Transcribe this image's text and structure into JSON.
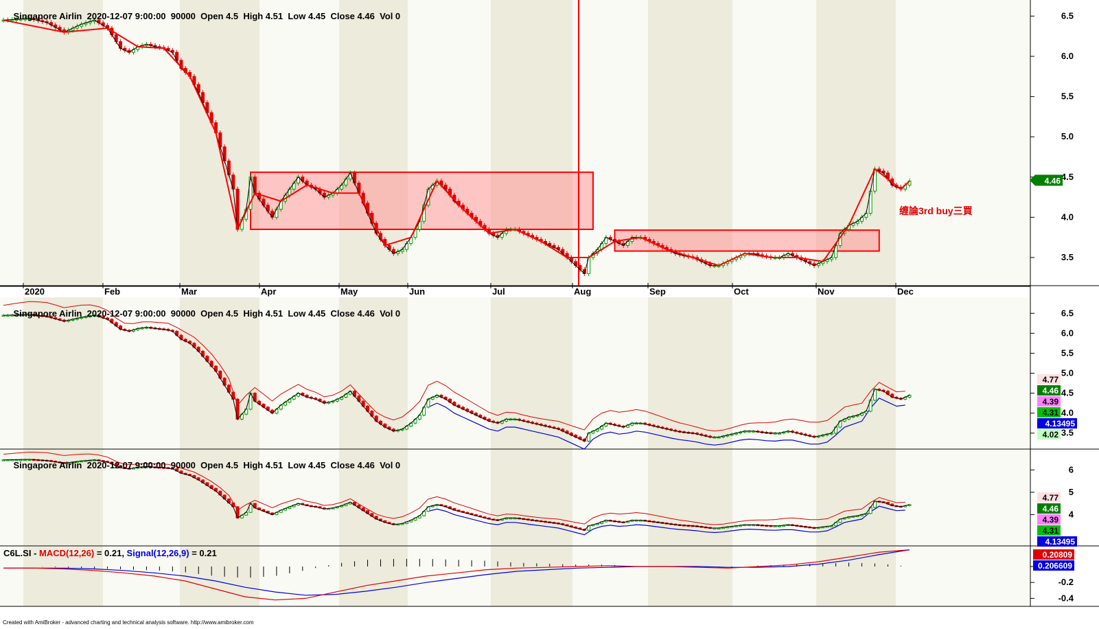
{
  "panes": [
    {
      "header": {
        "symbol": "Singapore Airlin",
        "datetime": "2020-12-07 9:00:00",
        "interval": "90000",
        "open": "Open 4.5",
        "high": "High 4.51",
        "low": "Low 4.45",
        "close": "Close 4.46",
        "vol": "Vol 0"
      },
      "y_ticks": [
        "6.5",
        "6.0",
        "5.5",
        "5.0",
        "4.5",
        "4.0",
        "3.5"
      ],
      "price_box": "4.46",
      "annotation": "缠論3rd buy三買"
    },
    {
      "header": {
        "symbol": "Singapore Airlin",
        "datetime": "2020-12-07 9:00:00",
        "interval": "90000",
        "open": "Open 4.5",
        "high": "High 4.51",
        "low": "Low 4.45",
        "close": "Close 4.46",
        "vol": "Vol 0"
      },
      "y_ticks": [
        "6.5",
        "6.0",
        "5.5",
        "5.0",
        "4.5",
        "4.0",
        "3.5"
      ],
      "value_boxes": [
        "4.77",
        "4.46",
        "4.39",
        "4.31",
        "4.13495",
        "4.02"
      ]
    },
    {
      "header": {
        "symbol": "Singapore Airlin",
        "datetime": "2020-12-07 9:00:00",
        "interval": "90000",
        "open": "Open 4.5",
        "high": "High 4.51",
        "low": "Low 4.45",
        "close": "Close 4.46",
        "vol": "Vol 0"
      },
      "y_ticks": [
        "6",
        "5",
        "4"
      ],
      "value_boxes": [
        "4.77",
        "4.46",
        "4.39",
        "4.31",
        "4.13495"
      ]
    }
  ],
  "macd": {
    "symbol": "C6L.SI - ",
    "macd_label": "MACD(12,26)",
    "macd_value": " = 0.21, ",
    "signal_label": "Signal(12,26,9)",
    "signal_value": " = 0.21",
    "y_ticks": [
      "0",
      "-0.2",
      "-0.4"
    ],
    "value_boxes": [
      "0.20809",
      "0.206609"
    ]
  },
  "x_axis": [
    "2020",
    "Feb",
    "Mar",
    "Apr",
    "May",
    "Jun",
    "Jul",
    "Aug",
    "Sep",
    "Oct",
    "Nov",
    "Dec"
  ],
  "footer": "Created with AmiBroker - advanced charting and technical analysis software. http://www.amibroker.com",
  "colors": {
    "up": "#00a000",
    "down": "#e00000",
    "zone": "#ff9999",
    "shade": "#ecebdc",
    "ma_blue": "#0000e0"
  },
  "chart_data": {
    "type": "candlestick",
    "title": "",
    "xlabel": "",
    "ylabel": "",
    "ylim": [
      3.15,
      6.7
    ],
    "points": [
      [
        0,
        6.45
      ],
      [
        6,
        6.47
      ],
      [
        10,
        6.42
      ],
      [
        14,
        6.3
      ],
      [
        18,
        6.4
      ],
      [
        21,
        6.45
      ],
      [
        24,
        6.35
      ],
      [
        27,
        6.1
      ],
      [
        29,
        6.05
      ],
      [
        31,
        6.12
      ],
      [
        33,
        6.15
      ],
      [
        35,
        6.12
      ],
      [
        37,
        6.1
      ],
      [
        39,
        6.05
      ],
      [
        41,
        5.85
      ],
      [
        43,
        5.75
      ],
      [
        45,
        5.55
      ],
      [
        47,
        5.3
      ],
      [
        49,
        5.05
      ],
      [
        51,
        4.7
      ],
      [
        53,
        4.35
      ],
      [
        54,
        3.85
      ],
      [
        56,
        4.1
      ],
      [
        57,
        4.5
      ],
      [
        58,
        4.3
      ],
      [
        60,
        4.15
      ],
      [
        62,
        4.0
      ],
      [
        64,
        4.2
      ],
      [
        66,
        4.35
      ],
      [
        68,
        4.5
      ],
      [
        70,
        4.4
      ],
      [
        72,
        4.35
      ],
      [
        74,
        4.25
      ],
      [
        76,
        4.3
      ],
      [
        78,
        4.4
      ],
      [
        80,
        4.55
      ],
      [
        82,
        4.3
      ],
      [
        84,
        4.05
      ],
      [
        86,
        3.8
      ],
      [
        88,
        3.65
      ],
      [
        90,
        3.55
      ],
      [
        92,
        3.6
      ],
      [
        94,
        3.75
      ],
      [
        96,
        3.95
      ],
      [
        98,
        4.35
      ],
      [
        100,
        4.45
      ],
      [
        102,
        4.35
      ],
      [
        104,
        4.2
      ],
      [
        106,
        4.1
      ],
      [
        108,
        4.0
      ],
      [
        110,
        3.9
      ],
      [
        112,
        3.8
      ],
      [
        114,
        3.75
      ],
      [
        116,
        3.85
      ],
      [
        118,
        3.85
      ],
      [
        120,
        3.8
      ],
      [
        122,
        3.75
      ],
      [
        124,
        3.7
      ],
      [
        126,
        3.65
      ],
      [
        128,
        3.6
      ],
      [
        130,
        3.5
      ],
      [
        132,
        3.4
      ],
      [
        134,
        3.3
      ],
      [
        135,
        3.5
      ],
      [
        137,
        3.6
      ],
      [
        139,
        3.75
      ],
      [
        141,
        3.7
      ],
      [
        143,
        3.65
      ],
      [
        145,
        3.75
      ],
      [
        147,
        3.75
      ],
      [
        149,
        3.7
      ],
      [
        151,
        3.65
      ],
      [
        153,
        3.6
      ],
      [
        155,
        3.55
      ],
      [
        157,
        3.52
      ],
      [
        159,
        3.5
      ],
      [
        161,
        3.45
      ],
      [
        163,
        3.4
      ],
      [
        165,
        3.4
      ],
      [
        167,
        3.45
      ],
      [
        169,
        3.5
      ],
      [
        171,
        3.55
      ],
      [
        173,
        3.55
      ],
      [
        175,
        3.52
      ],
      [
        177,
        3.5
      ],
      [
        179,
        3.5
      ],
      [
        181,
        3.55
      ],
      [
        183,
        3.5
      ],
      [
        185,
        3.45
      ],
      [
        187,
        3.4
      ],
      [
        189,
        3.45
      ],
      [
        191,
        3.5
      ],
      [
        193,
        3.8
      ],
      [
        195,
        3.9
      ],
      [
        197,
        3.95
      ],
      [
        199,
        4.05
      ],
      [
        201,
        4.6
      ],
      [
        203,
        4.55
      ],
      [
        205,
        4.4
      ],
      [
        207,
        4.35
      ],
      [
        209,
        4.45
      ]
    ],
    "zones": [
      {
        "from_bar": 57,
        "to_bar": 136,
        "low": 3.85,
        "high": 4.56
      },
      {
        "from_bar": 141,
        "to_bar": 202,
        "low": 3.58,
        "high": 3.84
      }
    ],
    "macd": [
      -0.02,
      -0.02,
      -0.03,
      -0.05,
      -0.08,
      -0.12,
      -0.18,
      -0.28,
      -0.38,
      -0.42,
      -0.4,
      -0.32,
      -0.24,
      -0.18,
      -0.12,
      -0.08,
      -0.04,
      -0.02,
      -0.01,
      0.0,
      0.01,
      0.0,
      0.0,
      -0.01,
      -0.02,
      0.0,
      0.02,
      0.06,
      0.12,
      0.18,
      0.21
    ],
    "signal": [
      -0.02,
      -0.02,
      -0.02,
      -0.03,
      -0.05,
      -0.08,
      -0.12,
      -0.18,
      -0.26,
      -0.32,
      -0.36,
      -0.35,
      -0.31,
      -0.26,
      -0.2,
      -0.15,
      -0.1,
      -0.06,
      -0.04,
      -0.02,
      -0.01,
      0.0,
      0.0,
      0.0,
      -0.01,
      -0.01,
      0.0,
      0.03,
      0.08,
      0.15,
      0.21
    ]
  }
}
